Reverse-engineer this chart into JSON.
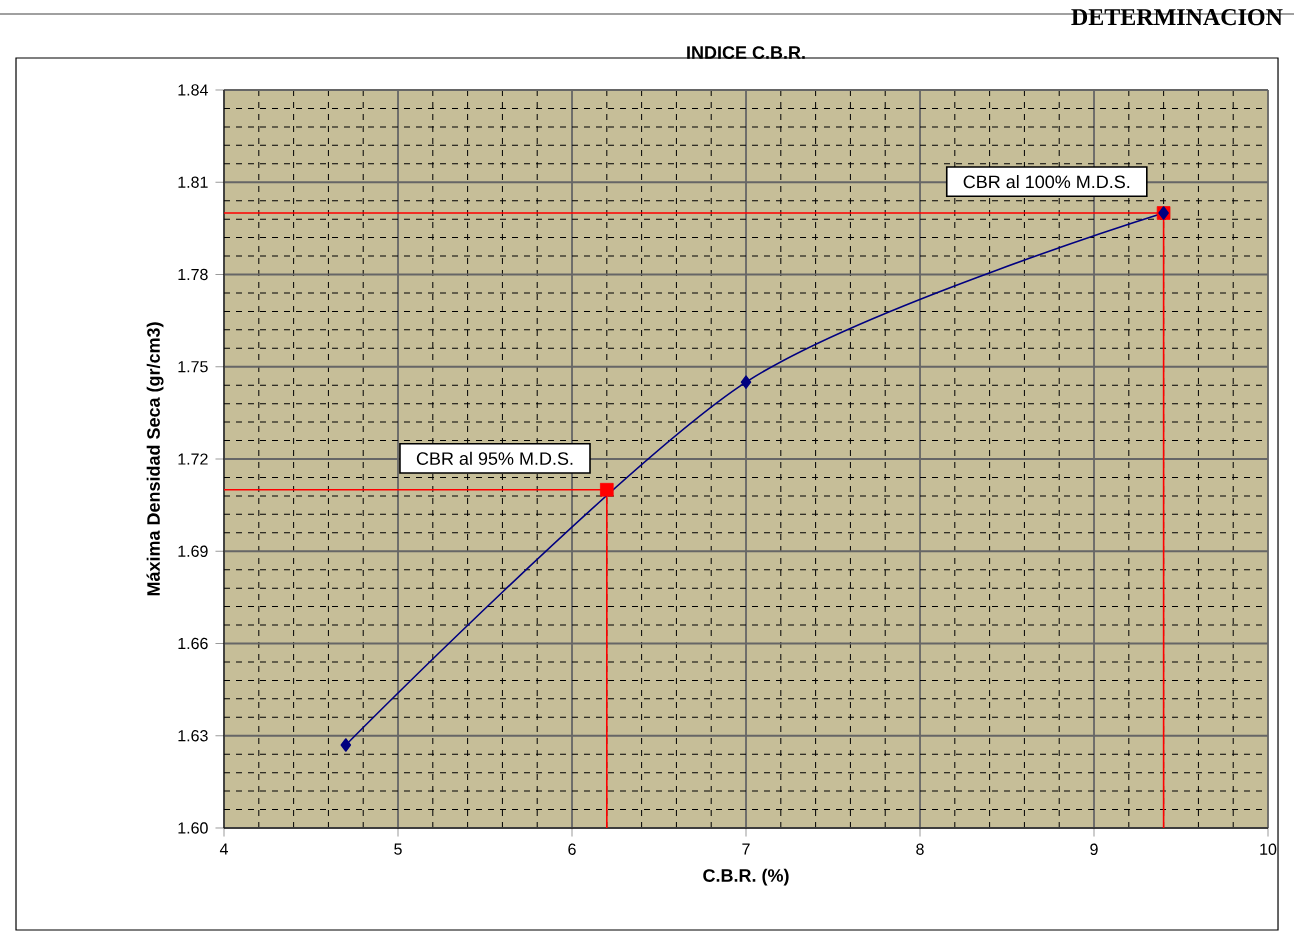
{
  "chart_data": {
    "type": "line",
    "title": "INDICE C.B.R.",
    "xlabel": "C.B.R. (%)",
    "ylabel": "Máxima Densidad Seca (gr/cm3)",
    "xlim": [
      4,
      10
    ],
    "xticks": [
      4,
      5,
      6,
      7,
      8,
      9,
      10
    ],
    "ylim": [
      1.6,
      1.84
    ],
    "yticks": [
      {
        "value": 1.6,
        "label": "1.60"
      },
      1.63,
      1.66,
      1.69,
      1.72,
      1.75,
      1.78,
      1.81,
      1.84
    ],
    "grid": true,
    "series": [
      {
        "color": "#ff0000",
        "x": [
          4,
          6.2,
          6.2
        ],
        "values": [
          1.71,
          1.71,
          1.6
        ],
        "marker": "none"
      },
      {
        "color": "#ff0000",
        "x": [
          4,
          9.4,
          9.4
        ],
        "values": [
          1.8,
          1.8,
          1.6
        ],
        "marker": "none"
      },
      {
        "type": "scatter",
        "color": "#ff0000",
        "x": [
          6.2,
          9.4
        ],
        "values": [
          1.71,
          1.8
        ],
        "marker": "square"
      },
      {
        "color": "#000080",
        "x": [
          4.7,
          7.0,
          9.4
        ],
        "values": [
          1.627,
          1.745,
          1.8
        ],
        "marker": "diamond"
      }
    ],
    "annotations": [
      {
        "text": "CBR al 95%  M.D.S.",
        "x": 6.2,
        "y": 1.71
      },
      {
        "text": "CBR al 100%  M.D.S.",
        "x": 9.4,
        "y": 1.8
      },
      "DETERMINACION"
    ]
  }
}
